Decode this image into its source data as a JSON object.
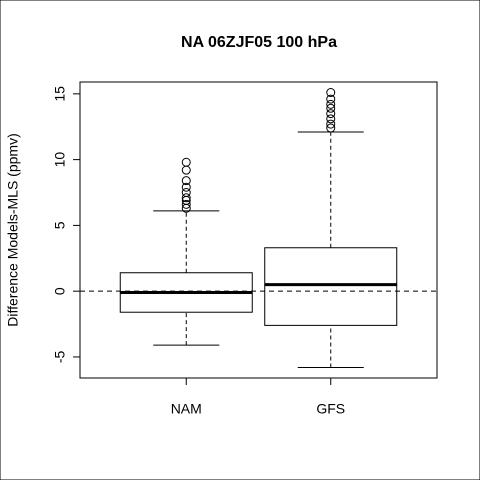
{
  "chart_data": {
    "type": "boxplot",
    "title": "NA 06ZJF05 100 hPa",
    "y_label": "Difference Models-MLS (ppmv)",
    "categories": [
      "NAM",
      "GFS"
    ],
    "boxes": [
      {
        "lower_whisker": -4.1,
        "q1": -1.6,
        "median": -0.1,
        "q3": 1.4,
        "upper_whisker": 6.1,
        "outliers": [
          6.3,
          6.6,
          6.9,
          7.1,
          7.5,
          7.9,
          8.4,
          9.2,
          9.8
        ]
      },
      {
        "lower_whisker": -5.8,
        "q1": -2.6,
        "median": 0.5,
        "q3": 3.3,
        "upper_whisker": 12.1,
        "outliers": [
          12.4,
          12.7,
          13.1,
          13.5,
          13.9,
          14.2,
          14.6,
          15.1
        ]
      }
    ],
    "reference_line": 0,
    "color": "#000000",
    "ylim": [
      -6.6,
      15.9
    ],
    "yticks": [
      -5,
      0,
      5,
      10,
      15
    ]
  }
}
